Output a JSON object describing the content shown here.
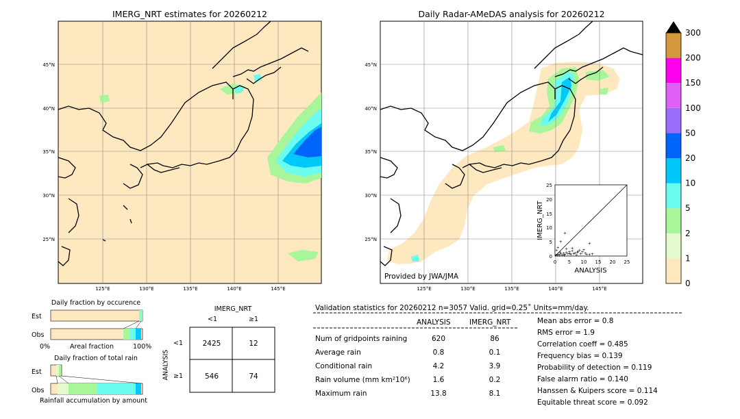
{
  "left_map": {
    "title": "IMERG_NRT estimates for 20260212",
    "lat_labels": [
      "45°N",
      "40°N",
      "35°N",
      "30°N",
      "25°N"
    ],
    "lon_labels": [
      "125°E",
      "130°E",
      "135°E",
      "140°E",
      "145°E"
    ]
  },
  "right_map": {
    "title": "Daily Radar-AMeDAS analysis for 20260212",
    "lat_labels": [
      "45°N",
      "40°N",
      "35°N",
      "30°N",
      "25°N"
    ],
    "lon_labels": [
      "125°E",
      "130°E",
      "135°E",
      "140°E",
      "145°E"
    ],
    "credit": "Provided by JWA/JMA"
  },
  "colorbar": {
    "labels": [
      "0",
      "1",
      "2",
      "5",
      "10",
      "20",
      "50",
      "100",
      "150",
      "200",
      "300"
    ],
    "colors": [
      "#fde8c0",
      "#e4f9cc",
      "#a8f59a",
      "#6cfcef",
      "#00c8fa",
      "#0064f8",
      "#9a6cf8",
      "#de60f4",
      "#ff00ee",
      "#d4973c"
    ]
  },
  "inset": {
    "xlabel": "ANALYSIS",
    "ylabel": "IMERG_NRT",
    "ticks": [
      "0",
      "5",
      "10",
      "15",
      "20",
      "25"
    ]
  },
  "fraction_occurrence": {
    "title": "Daily fraction by occurence",
    "rows": [
      "Est",
      "Obs"
    ],
    "xlabel_left": "0%",
    "xlabel_mid": "Areal fraction",
    "xlabel_right": "100%"
  },
  "fraction_rain": {
    "title": "Daily fraction of total rain",
    "rows": [
      "Est",
      "Obs"
    ],
    "xlabel": "Rainfall accumulation by amount"
  },
  "contingency": {
    "col_title": "IMERG_NRT",
    "col_labels": [
      "<1",
      "≥1"
    ],
    "row_title": "ANALYSIS",
    "row_labels": [
      "<1",
      "≥1"
    ],
    "cells": [
      [
        "2425",
        "12"
      ],
      [
        "546",
        "74"
      ]
    ]
  },
  "validation": {
    "header": "Validation statistics for 20260212  n=3057 Valid. grid=0.25˚ Units=mm/day.",
    "col_analysis": "ANALYSIS",
    "col_imerg": "IMERG_NRT",
    "rows": [
      {
        "label": "Num of gridpoints raining",
        "analysis": "620",
        "imerg": "86"
      },
      {
        "label": "Average rain",
        "analysis": "0.8",
        "imerg": "0.1"
      },
      {
        "label": "Conditional rain",
        "analysis": "4.2",
        "imerg": "3.9"
      },
      {
        "label": "Rain volume (mm km²10⁶)",
        "analysis": "1.6",
        "imerg": "0.2"
      },
      {
        "label": "Maximum rain",
        "analysis": "13.8",
        "imerg": "8.1"
      }
    ],
    "scores": [
      "Mean abs error =    0.8",
      "RMS error =    1.9",
      "Correlation coeff =  0.485",
      "Frequency bias =  0.139",
      "Probability of detection =  0.119",
      "False alarm ratio =  0.140",
      "Hanssen & Kuipers score =  0.114",
      "Equitable threat score =  0.092"
    ]
  }
}
